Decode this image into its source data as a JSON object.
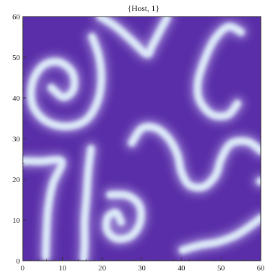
{
  "chart_data": {
    "type": "heatmap",
    "title": "{Host, 1}",
    "xlabel": "",
    "ylabel": "",
    "xlim": [
      0,
      60
    ],
    "ylim": [
      0,
      60
    ],
    "x_ticks": [
      0,
      10,
      20,
      30,
      40,
      50,
      60
    ],
    "y_ticks": [
      0,
      10,
      20,
      30,
      40,
      50,
      60
    ],
    "grid": false,
    "colors": {
      "background": "#5a2ea8",
      "highlight": "#dbe8f8"
    },
    "features": [
      {
        "kind": "spiral",
        "name": "upper-left spiral",
        "points": [
          [
            7.2,
            42.5
          ],
          [
            10.3,
            40.2
          ],
          [
            12.8,
            42.2
          ],
          [
            12.5,
            46.2
          ],
          [
            9.2,
            48.8
          ],
          [
            5.2,
            48.0
          ],
          [
            2.5,
            44.0
          ],
          [
            2.4,
            38.5
          ],
          [
            5.6,
            34.5
          ],
          [
            10.8,
            33.0
          ],
          [
            15.8,
            34.5
          ],
          [
            18.8,
            39.0
          ],
          [
            19.8,
            44.6
          ],
          [
            19.2,
            50.2
          ],
          [
            17.5,
            55.0
          ]
        ]
      },
      {
        "kind": "arm",
        "name": "top-center V",
        "points": [
          [
            19.5,
            60
          ],
          [
            23.5,
            57.5
          ],
          [
            27.8,
            53.8
          ],
          [
            31.3,
            50.8
          ],
          [
            32.6,
            52.8
          ],
          [
            34.6,
            56.5
          ],
          [
            36.4,
            59.8
          ]
        ]
      },
      {
        "kind": "hook",
        "name": "upper-right hook",
        "points": [
          [
            55.0,
            56.2
          ],
          [
            51.8,
            57.5
          ],
          [
            48.4,
            54.5
          ],
          [
            46.0,
            49.8
          ],
          [
            44.2,
            44.2
          ],
          [
            44.5,
            39.6
          ],
          [
            47.6,
            36.0
          ],
          [
            51.6,
            35.8
          ],
          [
            54.1,
            38.6
          ]
        ]
      },
      {
        "kind": "arm",
        "name": "left dogleg",
        "points": [
          [
            0,
            24.5
          ],
          [
            4.5,
            24.4
          ],
          [
            9.8,
            24.4
          ],
          [
            7.6,
            19.0
          ],
          [
            6.4,
            13.0
          ],
          [
            6.0,
            7.0
          ],
          [
            5.8,
            1.0
          ]
        ]
      },
      {
        "kind": "arm",
        "name": "center-left vertical",
        "points": [
          [
            17.2,
            27.5
          ],
          [
            16.5,
            22.0
          ],
          [
            16.1,
            16.0
          ],
          [
            15.6,
            10.0
          ],
          [
            15.6,
            4.0
          ],
          [
            15.4,
            0.5
          ]
        ]
      },
      {
        "kind": "s-curve",
        "name": "central S",
        "points": [
          [
            27.5,
            29.0
          ],
          [
            30.0,
            32.5
          ],
          [
            33.5,
            32.6
          ],
          [
            36.8,
            30.0
          ],
          [
            39.0,
            26.0
          ],
          [
            40.0,
            21.8
          ],
          [
            42.0,
            18.6
          ],
          [
            45.6,
            18.2
          ],
          [
            48.6,
            21.0
          ],
          [
            50.0,
            25.0
          ],
          [
            52.5,
            28.8
          ],
          [
            56.8,
            29.2
          ],
          [
            60,
            27.0
          ]
        ]
      },
      {
        "kind": "spiral",
        "name": "lower-center curl",
        "points": [
          [
            24.8,
            9.5
          ],
          [
            23.5,
            11.8
          ],
          [
            21.4,
            10.6
          ],
          [
            21.3,
            7.4
          ],
          [
            23.8,
            5.4
          ],
          [
            27.4,
            6.2
          ],
          [
            29.6,
            9.5
          ],
          [
            29.4,
            13.6
          ],
          [
            26.4,
            16.0
          ],
          [
            22.0,
            16.2
          ]
        ]
      },
      {
        "kind": "arm",
        "name": "lower-right arm",
        "points": [
          [
            40.3,
            2.6
          ],
          [
            44.6,
            3.8
          ],
          [
            49.2,
            4.6
          ],
          [
            54.0,
            6.4
          ],
          [
            58.0,
            9.0
          ],
          [
            60,
            10.5
          ]
        ]
      },
      {
        "kind": "spot",
        "name": "right-edge spot",
        "points": [
          [
            59.8,
            19.5
          ],
          [
            60,
            19.5
          ]
        ]
      }
    ]
  }
}
